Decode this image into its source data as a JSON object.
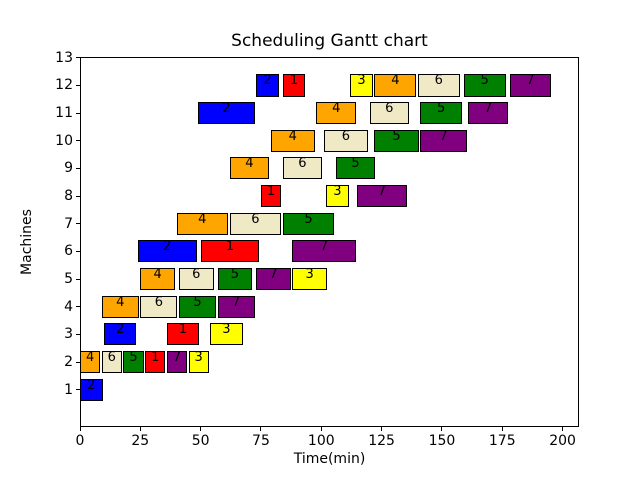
{
  "figure": {
    "background": "#ffffff"
  },
  "chart_data": {
    "type": "bar",
    "subtype": "gantt",
    "title": "Scheduling Gantt chart",
    "xlabel": "Time(min)",
    "ylabel": "Machines",
    "xticks": [
      0,
      25,
      50,
      75,
      100,
      125,
      150,
      175,
      200
    ],
    "yticks": [
      1,
      2,
      3,
      4,
      5,
      6,
      7,
      8,
      9,
      10,
      11,
      12,
      13
    ],
    "xlim": [
      0,
      206.8
    ],
    "ylim": [
      -0.35,
      13.03
    ],
    "grid": false,
    "legend": false,
    "bar_height": 0.8,
    "bar_edge_color": "#000000",
    "job_colors": {
      "1": "#ff0000",
      "2": "#0000ff",
      "3": "#ffff00",
      "4": "#ffa500",
      "5": "#008000",
      "6": "#efe9c6",
      "7": "#800080"
    },
    "machines": [
      {
        "machine": 1,
        "bars": [
          {
            "job": 2,
            "start": 0,
            "end": 10
          }
        ]
      },
      {
        "machine": 2,
        "bars": [
          {
            "job": 4,
            "start": 0,
            "end": 9
          },
          {
            "job": 6,
            "start": 9,
            "end": 18
          },
          {
            "job": 5,
            "start": 18,
            "end": 27
          },
          {
            "job": 1,
            "start": 27,
            "end": 36
          },
          {
            "job": 7,
            "start": 36,
            "end": 45
          },
          {
            "job": 3,
            "start": 45,
            "end": 54
          }
        ]
      },
      {
        "machine": 3,
        "bars": [
          {
            "job": 2,
            "start": 10,
            "end": 24
          },
          {
            "job": 1,
            "start": 36,
            "end": 50
          },
          {
            "job": 3,
            "start": 54,
            "end": 68
          }
        ]
      },
      {
        "machine": 4,
        "bars": [
          {
            "job": 4,
            "start": 9,
            "end": 25
          },
          {
            "job": 6,
            "start": 25,
            "end": 41
          },
          {
            "job": 5,
            "start": 41,
            "end": 57
          },
          {
            "job": 7,
            "start": 57,
            "end": 73
          }
        ]
      },
      {
        "machine": 5,
        "bars": [
          {
            "job": 4,
            "start": 25,
            "end": 40
          },
          {
            "job": 6,
            "start": 41,
            "end": 56
          },
          {
            "job": 5,
            "start": 57,
            "end": 72
          },
          {
            "job": 7,
            "start": 73,
            "end": 88
          },
          {
            "job": 3,
            "start": 88,
            "end": 103
          }
        ]
      },
      {
        "machine": 6,
        "bars": [
          {
            "job": 2,
            "start": 24,
            "end": 49
          },
          {
            "job": 1,
            "start": 50,
            "end": 75
          },
          {
            "job": 7,
            "start": 88,
            "end": 115
          }
        ]
      },
      {
        "machine": 7,
        "bars": [
          {
            "job": 4,
            "start": 40,
            "end": 62
          },
          {
            "job": 6,
            "start": 62,
            "end": 84
          },
          {
            "job": 5,
            "start": 84,
            "end": 106
          }
        ]
      },
      {
        "machine": 8,
        "bars": [
          {
            "job": 1,
            "start": 75,
            "end": 84
          },
          {
            "job": 3,
            "start": 102,
            "end": 112
          },
          {
            "job": 7,
            "start": 115,
            "end": 136
          }
        ]
      },
      {
        "machine": 9,
        "bars": [
          {
            "job": 4,
            "start": 62,
            "end": 79
          },
          {
            "job": 6,
            "start": 84,
            "end": 101
          },
          {
            "job": 5,
            "start": 106,
            "end": 123
          }
        ]
      },
      {
        "machine": 10,
        "bars": [
          {
            "job": 4,
            "start": 79,
            "end": 98
          },
          {
            "job": 6,
            "start": 101,
            "end": 120
          },
          {
            "job": 5,
            "start": 122,
            "end": 141
          },
          {
            "job": 7,
            "start": 141,
            "end": 161
          }
        ]
      },
      {
        "machine": 11,
        "bars": [
          {
            "job": 2,
            "start": 49,
            "end": 73
          },
          {
            "job": 4,
            "start": 98,
            "end": 115
          },
          {
            "job": 6,
            "start": 120,
            "end": 137
          },
          {
            "job": 5,
            "start": 141,
            "end": 159
          },
          {
            "job": 7,
            "start": 161,
            "end": 178
          }
        ]
      },
      {
        "machine": 12,
        "bars": [
          {
            "job": 2,
            "start": 73,
            "end": 83
          },
          {
            "job": 1,
            "start": 84,
            "end": 94
          },
          {
            "job": 3,
            "start": 112,
            "end": 122
          },
          {
            "job": 4,
            "start": 122,
            "end": 140
          },
          {
            "job": 6,
            "start": 140,
            "end": 158
          },
          {
            "job": 5,
            "start": 159,
            "end": 177
          },
          {
            "job": 7,
            "start": 178,
            "end": 196
          }
        ]
      }
    ]
  }
}
